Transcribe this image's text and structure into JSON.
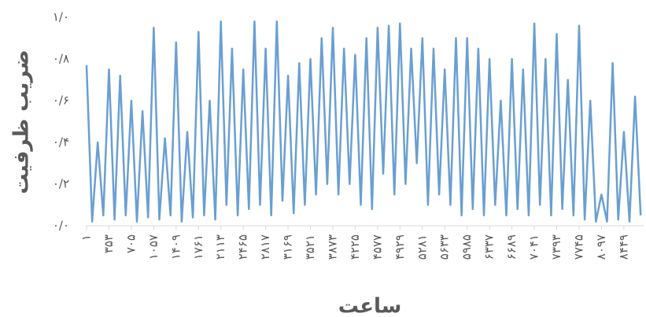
{
  "chart_data": {
    "type": "line",
    "x_label": "ساعت",
    "y_label": "ضریب ظرفیت",
    "x": [
      1,
      89,
      177,
      265,
      353,
      441,
      529,
      617,
      705,
      793,
      881,
      969,
      1057,
      1145,
      1233,
      1321,
      1409,
      1497,
      1585,
      1673,
      1761,
      1849,
      1937,
      2025,
      2113,
      2201,
      2289,
      2377,
      2465,
      2553,
      2641,
      2729,
      2817,
      2905,
      2993,
      3081,
      3169,
      3257,
      3345,
      3433,
      3521,
      3609,
      3697,
      3785,
      3873,
      3961,
      4049,
      4137,
      4225,
      4313,
      4401,
      4489,
      4577,
      4665,
      4753,
      4841,
      4929,
      5017,
      5105,
      5193,
      5281,
      5369,
      5457,
      5545,
      5633,
      5721,
      5809,
      5897,
      5985,
      6073,
      6161,
      6249,
      6337,
      6425,
      6513,
      6601,
      6689,
      6777,
      6865,
      6953,
      7041,
      7129,
      7217,
      7305,
      7393,
      7481,
      7569,
      7657,
      7745,
      7833,
      7921,
      8009,
      8097,
      8185,
      8273,
      8361,
      8449,
      8537,
      8625,
      8713
    ],
    "series": [
      {
        "color": "#6a9fd2",
        "values": [
          0.77,
          0.02,
          0.4,
          0.05,
          0.75,
          0.03,
          0.72,
          0.05,
          0.6,
          0.02,
          0.55,
          0.04,
          0.95,
          0.03,
          0.42,
          0.05,
          0.88,
          0.02,
          0.45,
          0.04,
          0.93,
          0.05,
          0.6,
          0.03,
          0.98,
          0.1,
          0.85,
          0.05,
          0.75,
          0.08,
          0.98,
          0.1,
          0.85,
          0.05,
          0.98,
          0.12,
          0.72,
          0.06,
          0.78,
          0.1,
          0.8,
          0.15,
          0.9,
          0.2,
          0.95,
          0.15,
          0.85,
          0.2,
          0.82,
          0.1,
          0.9,
          0.08,
          0.95,
          0.25,
          0.96,
          0.15,
          0.97,
          0.2,
          0.85,
          0.3,
          0.9,
          0.1,
          0.85,
          0.15,
          0.75,
          0.1,
          0.9,
          0.05,
          0.9,
          0.08,
          0.85,
          0.05,
          0.8,
          0.1,
          0.6,
          0.05,
          0.8,
          0.08,
          0.75,
          0.05,
          0.97,
          0.1,
          0.8,
          0.05,
          0.92,
          0.08,
          0.7,
          0.05,
          0.96,
          0.03,
          0.6,
          0.02,
          0.15,
          0.02,
          0.78,
          0.03,
          0.45,
          0.02,
          0.62,
          0.05
        ]
      }
    ],
    "xlim": [
      1,
      8760
    ],
    "xticks": [
      {
        "value": 1,
        "label": "۱"
      },
      {
        "value": 353,
        "label": "۳۵۳"
      },
      {
        "value": 705,
        "label": "۷۰۵"
      },
      {
        "value": 1057,
        "label": "۱۰۵۷"
      },
      {
        "value": 1409,
        "label": "۱۴۰۹"
      },
      {
        "value": 1761,
        "label": "۱۷۶۱"
      },
      {
        "value": 2113,
        "label": "۲۱۱۳"
      },
      {
        "value": 2465,
        "label": "۲۴۶۵"
      },
      {
        "value": 2817,
        "label": "۲۸۱۷"
      },
      {
        "value": 3169,
        "label": "۳۱۶۹"
      },
      {
        "value": 3521,
        "label": "۳۵۲۱"
      },
      {
        "value": 3873,
        "label": "۳۸۷۳"
      },
      {
        "value": 4225,
        "label": "۴۲۲۵"
      },
      {
        "value": 4577,
        "label": "۴۵۷۷"
      },
      {
        "value": 4929,
        "label": "۴۹۲۹"
      },
      {
        "value": 5281,
        "label": "۵۲۸۱"
      },
      {
        "value": 5633,
        "label": "۵۶۳۳"
      },
      {
        "value": 5985,
        "label": "۵۹۸۵"
      },
      {
        "value": 6337,
        "label": "۶۳۳۷"
      },
      {
        "value": 6689,
        "label": "۶۶۸۹"
      },
      {
        "value": 7041,
        "label": "۷۰۴۱"
      },
      {
        "value": 7393,
        "label": "۷۳۹۳"
      },
      {
        "value": 7745,
        "label": "۷۷۴۵"
      },
      {
        "value": 8097,
        "label": "۸۰۹۷"
      },
      {
        "value": 8449,
        "label": "۸۴۴۹"
      }
    ],
    "ylim": [
      0,
      1
    ],
    "yticks": [
      {
        "value": 0,
        "label": "۰/۰"
      },
      {
        "value": 0.2,
        "label": "۰/۲"
      },
      {
        "value": 0.4,
        "label": "۰/۴"
      },
      {
        "value": 0.6,
        "label": "۰/۶"
      },
      {
        "value": 0.8,
        "label": "۰/۸"
      },
      {
        "value": 1,
        "label": "۱/۰"
      }
    ],
    "grid": false
  }
}
